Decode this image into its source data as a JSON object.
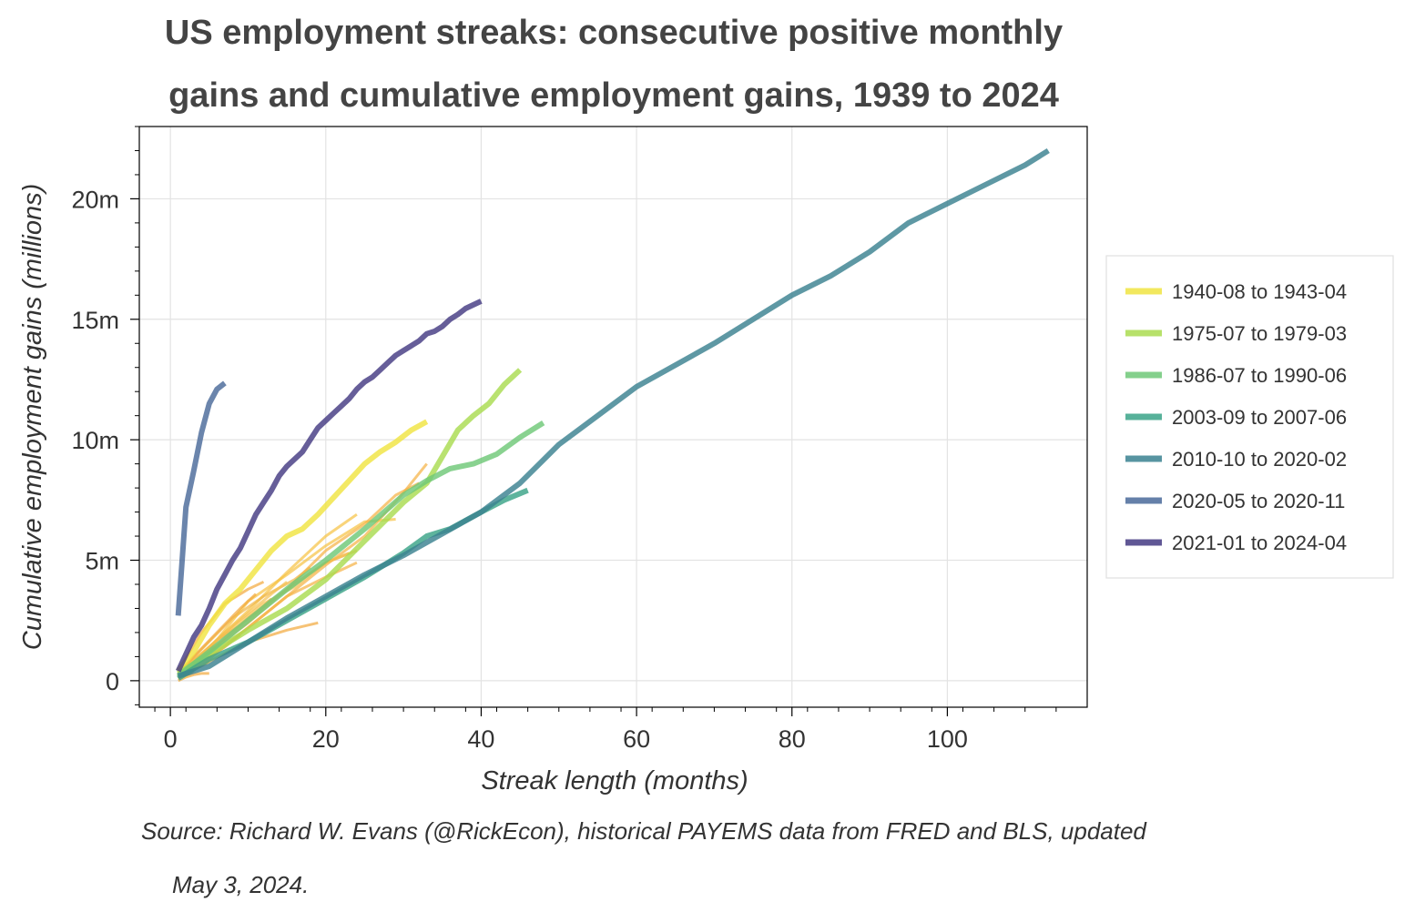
{
  "chart_data": {
    "type": "line",
    "title_lines": [
      "US employment streaks: consecutive positive monthly",
      "gains and cumulative employment gains, 1939 to 2024"
    ],
    "xlabel": "Streak length (months)",
    "ylabel": "Cumulative employment gains (millions)",
    "xlim": [
      -4,
      118
    ],
    "ylim": [
      -1.1,
      23
    ],
    "xticks": [
      0,
      20,
      40,
      60,
      80,
      100
    ],
    "xtick_labels": [
      "0",
      "20",
      "40",
      "60",
      "80",
      "100"
    ],
    "yticks": [
      0,
      5,
      10,
      15,
      20
    ],
    "ytick_labels": [
      "0",
      "5m",
      "10m",
      "15m",
      "20m"
    ],
    "grid": true,
    "legend_placement": "right-outside",
    "source_lines": [
      "Source: Richard W. Evans (@RickEcon), historical PAYEMS data from FRED and BLS, updated",
      "May 3, 2024."
    ],
    "series": [
      {
        "name": "1940-08 to 1943-04",
        "color": "#f0e442",
        "legend": true,
        "points": [
          [
            1,
            0.4
          ],
          [
            3,
            1.2
          ],
          [
            5,
            2.3
          ],
          [
            7,
            3.2
          ],
          [
            9,
            3.8
          ],
          [
            11,
            4.6
          ],
          [
            13,
            5.4
          ],
          [
            15,
            6.0
          ],
          [
            17,
            6.3
          ],
          [
            19,
            6.9
          ],
          [
            21,
            7.6
          ],
          [
            23,
            8.3
          ],
          [
            25,
            9.0
          ],
          [
            27,
            9.5
          ],
          [
            29,
            9.9
          ],
          [
            31,
            10.4
          ],
          [
            33,
            10.75
          ]
        ]
      },
      {
        "name": "1975-07 to 1979-03",
        "color": "#aadc50",
        "legend": true,
        "points": [
          [
            1,
            0.3
          ],
          [
            5,
            1.1
          ],
          [
            10,
            2.1
          ],
          [
            15,
            3.0
          ],
          [
            20,
            4.2
          ],
          [
            25,
            5.8
          ],
          [
            30,
            7.4
          ],
          [
            33,
            8.2
          ],
          [
            35,
            9.3
          ],
          [
            37,
            10.4
          ],
          [
            39,
            11.0
          ],
          [
            41,
            11.5
          ],
          [
            43,
            12.3
          ],
          [
            45,
            12.9
          ]
        ]
      },
      {
        "name": "1986-07 to 1990-06",
        "color": "#6fc878",
        "legend": true,
        "points": [
          [
            1,
            0.2
          ],
          [
            5,
            1.2
          ],
          [
            10,
            2.5
          ],
          [
            15,
            3.8
          ],
          [
            20,
            5.0
          ],
          [
            25,
            6.3
          ],
          [
            30,
            7.7
          ],
          [
            33,
            8.3
          ],
          [
            36,
            8.8
          ],
          [
            39,
            9.0
          ],
          [
            42,
            9.4
          ],
          [
            45,
            10.1
          ],
          [
            48,
            10.7
          ]
        ]
      },
      {
        "name": "2003-09 to 2007-06",
        "color": "#3aa388",
        "legend": true,
        "points": [
          [
            1,
            0.1
          ],
          [
            5,
            0.9
          ],
          [
            10,
            1.6
          ],
          [
            15,
            2.5
          ],
          [
            20,
            3.4
          ],
          [
            25,
            4.3
          ],
          [
            30,
            5.3
          ],
          [
            33,
            6.0
          ],
          [
            36,
            6.3
          ],
          [
            40,
            7.0
          ],
          [
            43,
            7.5
          ],
          [
            46,
            7.9
          ]
        ]
      },
      {
        "name": "2010-10 to 2020-02",
        "color": "#3a8190",
        "legend": true,
        "points": [
          [
            1,
            0.2
          ],
          [
            5,
            0.6
          ],
          [
            10,
            1.6
          ],
          [
            15,
            2.6
          ],
          [
            20,
            3.5
          ],
          [
            25,
            4.4
          ],
          [
            30,
            5.2
          ],
          [
            35,
            6.1
          ],
          [
            40,
            7.0
          ],
          [
            45,
            8.2
          ],
          [
            50,
            9.8
          ],
          [
            55,
            11.0
          ],
          [
            60,
            12.2
          ],
          [
            65,
            13.1
          ],
          [
            70,
            14.0
          ],
          [
            75,
            15.0
          ],
          [
            80,
            16.0
          ],
          [
            85,
            16.8
          ],
          [
            90,
            17.8
          ],
          [
            95,
            19.0
          ],
          [
            100,
            19.8
          ],
          [
            105,
            20.6
          ],
          [
            110,
            21.4
          ],
          [
            113,
            22.0
          ]
        ]
      },
      {
        "name": "2020-05 to 2020-11",
        "color": "#4a6a9a",
        "legend": true,
        "points": [
          [
            1,
            2.7
          ],
          [
            2,
            7.2
          ],
          [
            3,
            8.7
          ],
          [
            4,
            10.3
          ],
          [
            5,
            11.5
          ],
          [
            6,
            12.1
          ],
          [
            7,
            12.35
          ]
        ]
      },
      {
        "name": "2021-01 to 2024-04",
        "color": "#443a83",
        "legend": true,
        "points": [
          [
            1,
            0.4
          ],
          [
            2,
            1.1
          ],
          [
            3,
            1.8
          ],
          [
            4,
            2.3
          ],
          [
            5,
            3.0
          ],
          [
            6,
            3.8
          ],
          [
            7,
            4.4
          ],
          [
            8,
            5.0
          ],
          [
            9,
            5.5
          ],
          [
            10,
            6.2
          ],
          [
            11,
            6.9
          ],
          [
            12,
            7.4
          ],
          [
            13,
            7.9
          ],
          [
            14,
            8.5
          ],
          [
            15,
            8.9
          ],
          [
            16,
            9.2
          ],
          [
            17,
            9.5
          ],
          [
            18,
            10.0
          ],
          [
            19,
            10.5
          ],
          [
            20,
            10.8
          ],
          [
            21,
            11.1
          ],
          [
            22,
            11.4
          ],
          [
            23,
            11.7
          ],
          [
            24,
            12.1
          ],
          [
            25,
            12.4
          ],
          [
            26,
            12.6
          ],
          [
            27,
            12.9
          ],
          [
            28,
            13.2
          ],
          [
            29,
            13.5
          ],
          [
            30,
            13.7
          ],
          [
            31,
            13.9
          ],
          [
            32,
            14.1
          ],
          [
            33,
            14.4
          ],
          [
            34,
            14.5
          ],
          [
            35,
            14.7
          ],
          [
            36,
            15.0
          ],
          [
            37,
            15.2
          ],
          [
            38,
            15.45
          ],
          [
            39,
            15.6
          ],
          [
            40,
            15.75
          ]
        ]
      },
      {
        "color": "#f5b041",
        "legend": false,
        "points": [
          [
            1,
            0.2
          ],
          [
            5,
            1.0
          ],
          [
            10,
            2.2
          ],
          [
            15,
            3.5
          ],
          [
            20,
            4.8
          ],
          [
            25,
            6.0
          ],
          [
            30,
            7.8
          ],
          [
            33,
            9.0
          ]
        ]
      },
      {
        "color": "#f7c242",
        "legend": false,
        "points": [
          [
            1,
            0.3
          ],
          [
            5,
            1.4
          ],
          [
            10,
            2.9
          ],
          [
            15,
            4.5
          ],
          [
            20,
            6.0
          ],
          [
            24,
            6.9
          ]
        ]
      },
      {
        "color": "#f2a83a",
        "legend": false,
        "points": [
          [
            1,
            0.2
          ],
          [
            5,
            1.2
          ],
          [
            10,
            2.6
          ],
          [
            15,
            3.8
          ],
          [
            20,
            4.9
          ],
          [
            24,
            5.4
          ]
        ]
      },
      {
        "color": "#f5b041",
        "legend": false,
        "points": [
          [
            1,
            0.1
          ],
          [
            5,
            0.9
          ],
          [
            10,
            2.2
          ],
          [
            15,
            3.5
          ],
          [
            20,
            4.3
          ],
          [
            24,
            4.9
          ]
        ]
      },
      {
        "color": "#f2a83a",
        "legend": false,
        "points": [
          [
            1,
            0.1
          ],
          [
            5,
            0.8
          ],
          [
            10,
            1.6
          ],
          [
            15,
            2.1
          ],
          [
            19,
            2.4
          ]
        ]
      },
      {
        "color": "#f7c242",
        "legend": false,
        "points": [
          [
            2,
            0.2
          ],
          [
            5,
            1.3
          ],
          [
            10,
            3.3
          ],
          [
            15,
            4.4
          ],
          [
            20,
            5.6
          ],
          [
            25,
            6.6
          ],
          [
            29,
            6.7
          ]
        ]
      },
      {
        "color": "#f5b041",
        "legend": false,
        "points": [
          [
            1,
            0.2
          ],
          [
            5,
            1.2
          ],
          [
            10,
            2.4
          ],
          [
            15,
            3.8
          ],
          [
            20,
            5.4
          ],
          [
            25,
            6.5
          ],
          [
            29,
            7.7
          ],
          [
            32,
            8.2
          ]
        ]
      },
      {
        "color": "#f2a83a",
        "legend": false,
        "points": [
          [
            1,
            0.4
          ],
          [
            4,
            2.0
          ],
          [
            7,
            3.2
          ],
          [
            10,
            3.8
          ],
          [
            12,
            4.1
          ]
        ]
      },
      {
        "color": "#f0b545",
        "legend": false,
        "points": [
          [
            1,
            0.3
          ],
          [
            4,
            1.3
          ],
          [
            8,
            2.6
          ],
          [
            12,
            3.5
          ],
          [
            16,
            4.2
          ],
          [
            18,
            4.7
          ]
        ]
      },
      {
        "color": "#f5c050",
        "legend": false,
        "points": [
          [
            1,
            0.2
          ],
          [
            4,
            1.1
          ],
          [
            8,
            2.2
          ],
          [
            12,
            3.2
          ],
          [
            16,
            3.9
          ],
          [
            20,
            4.9
          ],
          [
            23,
            5.3
          ]
        ]
      },
      {
        "color": "#f2a83a",
        "legend": false,
        "points": [
          [
            1,
            0.3
          ],
          [
            3,
            1.0
          ],
          [
            6,
            2.0
          ],
          [
            9,
            3.0
          ],
          [
            11,
            3.6
          ]
        ]
      },
      {
        "color": "#f0b545",
        "legend": false,
        "points": [
          [
            1,
            0.1
          ],
          [
            2,
            0.3
          ],
          [
            3,
            0.5
          ],
          [
            4,
            0.6
          ],
          [
            5,
            0.8
          ]
        ]
      },
      {
        "color": "#f5b041",
        "legend": false,
        "points": [
          [
            1,
            0.2
          ],
          [
            3,
            0.6
          ],
          [
            5,
            1.0
          ],
          [
            7,
            1.4
          ],
          [
            9,
            1.9
          ]
        ]
      },
      {
        "color": "#f2a83a",
        "legend": false,
        "points": [
          [
            1,
            0.0
          ],
          [
            2,
            0.15
          ],
          [
            3,
            0.25
          ],
          [
            4,
            0.3
          ],
          [
            5,
            0.3
          ]
        ]
      },
      {
        "color": "#f7c242",
        "legend": false,
        "points": [
          [
            1,
            0.1
          ],
          [
            2,
            0.2
          ],
          [
            3,
            0.4
          ]
        ]
      },
      {
        "color": "#f0b545",
        "legend": false,
        "points": [
          [
            1,
            0.2
          ],
          [
            3,
            0.8
          ],
          [
            6,
            1.7
          ],
          [
            9,
            2.3
          ],
          [
            11,
            2.8
          ],
          [
            13,
            3.4
          ]
        ]
      },
      {
        "color": "#f5c050",
        "legend": false,
        "points": [
          [
            1,
            0.3
          ],
          [
            4,
            1.1
          ],
          [
            7,
            2.0
          ],
          [
            10,
            2.8
          ],
          [
            13,
            3.6
          ],
          [
            15,
            4.1
          ]
        ]
      }
    ]
  }
}
